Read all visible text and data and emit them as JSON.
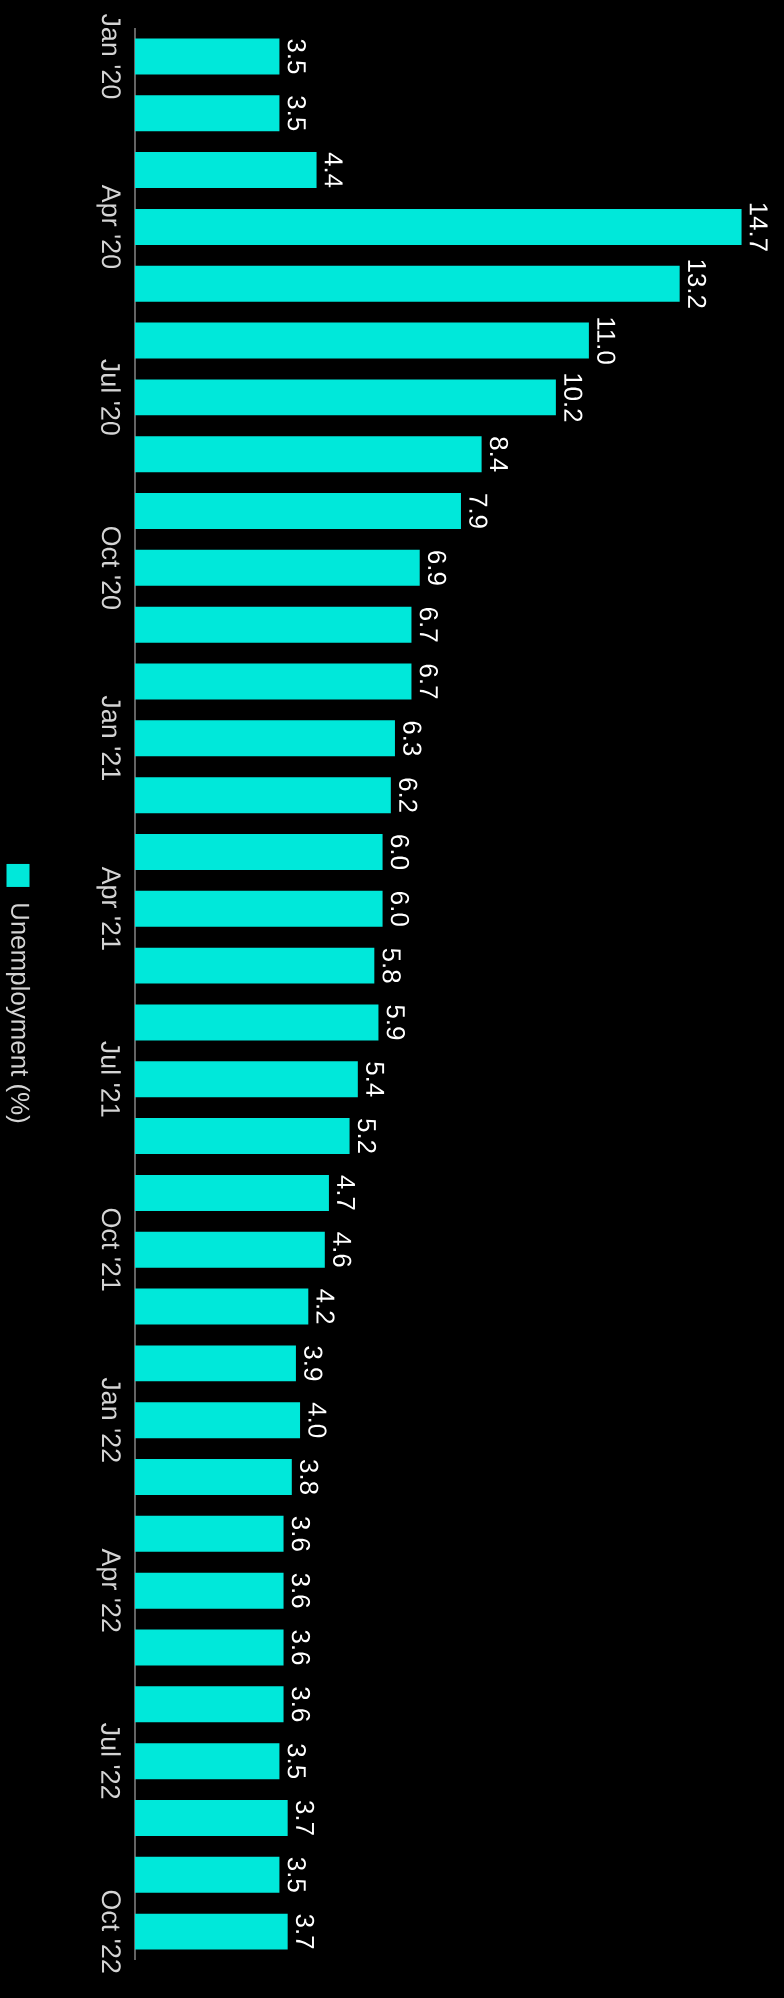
{
  "chart_data": {
    "type": "bar",
    "orientation": "horizontal",
    "categories": [
      "Jan '20",
      null,
      null,
      "Apr '20",
      null,
      null,
      "Jul '20",
      null,
      null,
      "Oct '20",
      null,
      null,
      "Jan '21",
      null,
      null,
      "Apr '21",
      null,
      null,
      "Jul '21",
      null,
      null,
      "Oct '21",
      null,
      null,
      "Jan '22",
      null,
      null,
      "Apr '22",
      null,
      null,
      "Jul '22",
      null,
      null,
      "Oct '22"
    ],
    "series": [
      {
        "name": "Unemployment (%)",
        "color": "#00e8da",
        "values": [
          3.5,
          3.5,
          4.4,
          14.7,
          13.2,
          11.0,
          10.2,
          8.4,
          7.9,
          6.9,
          6.7,
          6.7,
          6.3,
          6.2,
          6.0,
          6.0,
          5.8,
          5.9,
          5.4,
          5.2,
          4.7,
          4.6,
          4.2,
          3.9,
          4.0,
          3.8,
          3.6,
          3.6,
          3.6,
          3.6,
          3.5,
          3.7,
          3.5,
          3.7
        ],
        "value_labels": [
          "3.5",
          "3.5",
          "4.4",
          "14.7",
          "13.2",
          "11.0",
          "10.2",
          "8.4",
          "7.9",
          "6.9",
          "6.7",
          "6.7",
          "6.3",
          "6.2",
          "6.0",
          "6.0",
          "5.8",
          "5.9",
          "5.4",
          "5.2",
          "4.7",
          "4.6",
          "4.2",
          "3.9",
          "4.0",
          "3.8",
          "3.6",
          "3.6",
          "3.6",
          "3.6",
          "3.5",
          "3.7",
          "3.5",
          "3.7"
        ]
      }
    ],
    "tick_labels": "y",
    "legend": "left"
  }
}
